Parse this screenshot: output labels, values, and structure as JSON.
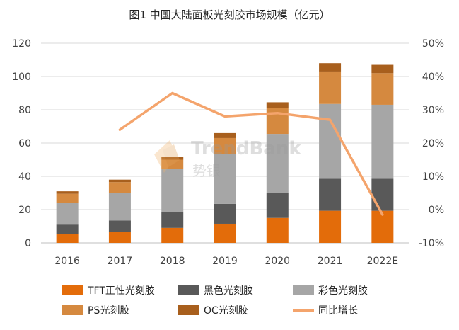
{
  "title": "图1 中国大陆面板光刻胶市场规模（亿元）",
  "colors": {
    "tft": "#e36c0a",
    "black": "#595959",
    "color": "#a6a6a6",
    "ps": "#d5893f",
    "oc": "#a85f1d",
    "yoy": "#f4a46c",
    "grid": "#d9d9d9"
  },
  "chart_data": {
    "type": "bar",
    "stacked": true,
    "categories": [
      "2016",
      "2017",
      "2018",
      "2019",
      "2020",
      "2021",
      "2022E"
    ],
    "series": [
      {
        "name": "TFT正性光刻胶",
        "values": [
          5.5,
          6.5,
          9,
          11.5,
          15,
          19.3,
          19.3
        ]
      },
      {
        "name": "黑色光刻胶",
        "values": [
          5.5,
          7,
          9.5,
          12,
          15,
          19.2,
          19.2
        ]
      },
      {
        "name": "彩色光刻胶",
        "values": [
          13,
          16.5,
          26,
          30,
          35.5,
          45,
          44.5
        ]
      },
      {
        "name": "PS光刻胶",
        "values": [
          5.5,
          6.5,
          5.5,
          9.5,
          15.5,
          19.5,
          19
        ]
      },
      {
        "name": "OC光刻胶",
        "values": [
          1.5,
          1.5,
          1.5,
          3,
          3.5,
          5,
          5
        ]
      }
    ],
    "line_series": {
      "name": "同比增长",
      "values": [
        null,
        24,
        35,
        28,
        29,
        27,
        -1.5
      ]
    },
    "ylim": [
      0,
      120
    ],
    "y_ticks": [
      "0",
      "20",
      "40",
      "60",
      "80",
      "100",
      "120"
    ],
    "y2lim": [
      -10,
      50
    ],
    "y2_ticks": [
      "-10%",
      "0%",
      "10%",
      "20%",
      "30%",
      "40%",
      "50%"
    ],
    "legend_position": "bottom"
  },
  "legend": [
    {
      "label": "TFT正性光刻胶",
      "kind": "bar",
      "color": "#e36c0a"
    },
    {
      "label": "黑色光刻胶",
      "kind": "bar",
      "color": "#595959"
    },
    {
      "label": "彩色光刻胶",
      "kind": "bar",
      "color": "#a6a6a6"
    },
    {
      "label": "PS光刻胶",
      "kind": "bar",
      "color": "#d5893f"
    },
    {
      "label": "OC光刻胶",
      "kind": "bar",
      "color": "#a85f1d"
    },
    {
      "label": "同比增长",
      "kind": "line",
      "color": "#f4a46c"
    }
  ],
  "watermark": {
    "brand": "TrendBank",
    "cn": "势银"
  }
}
